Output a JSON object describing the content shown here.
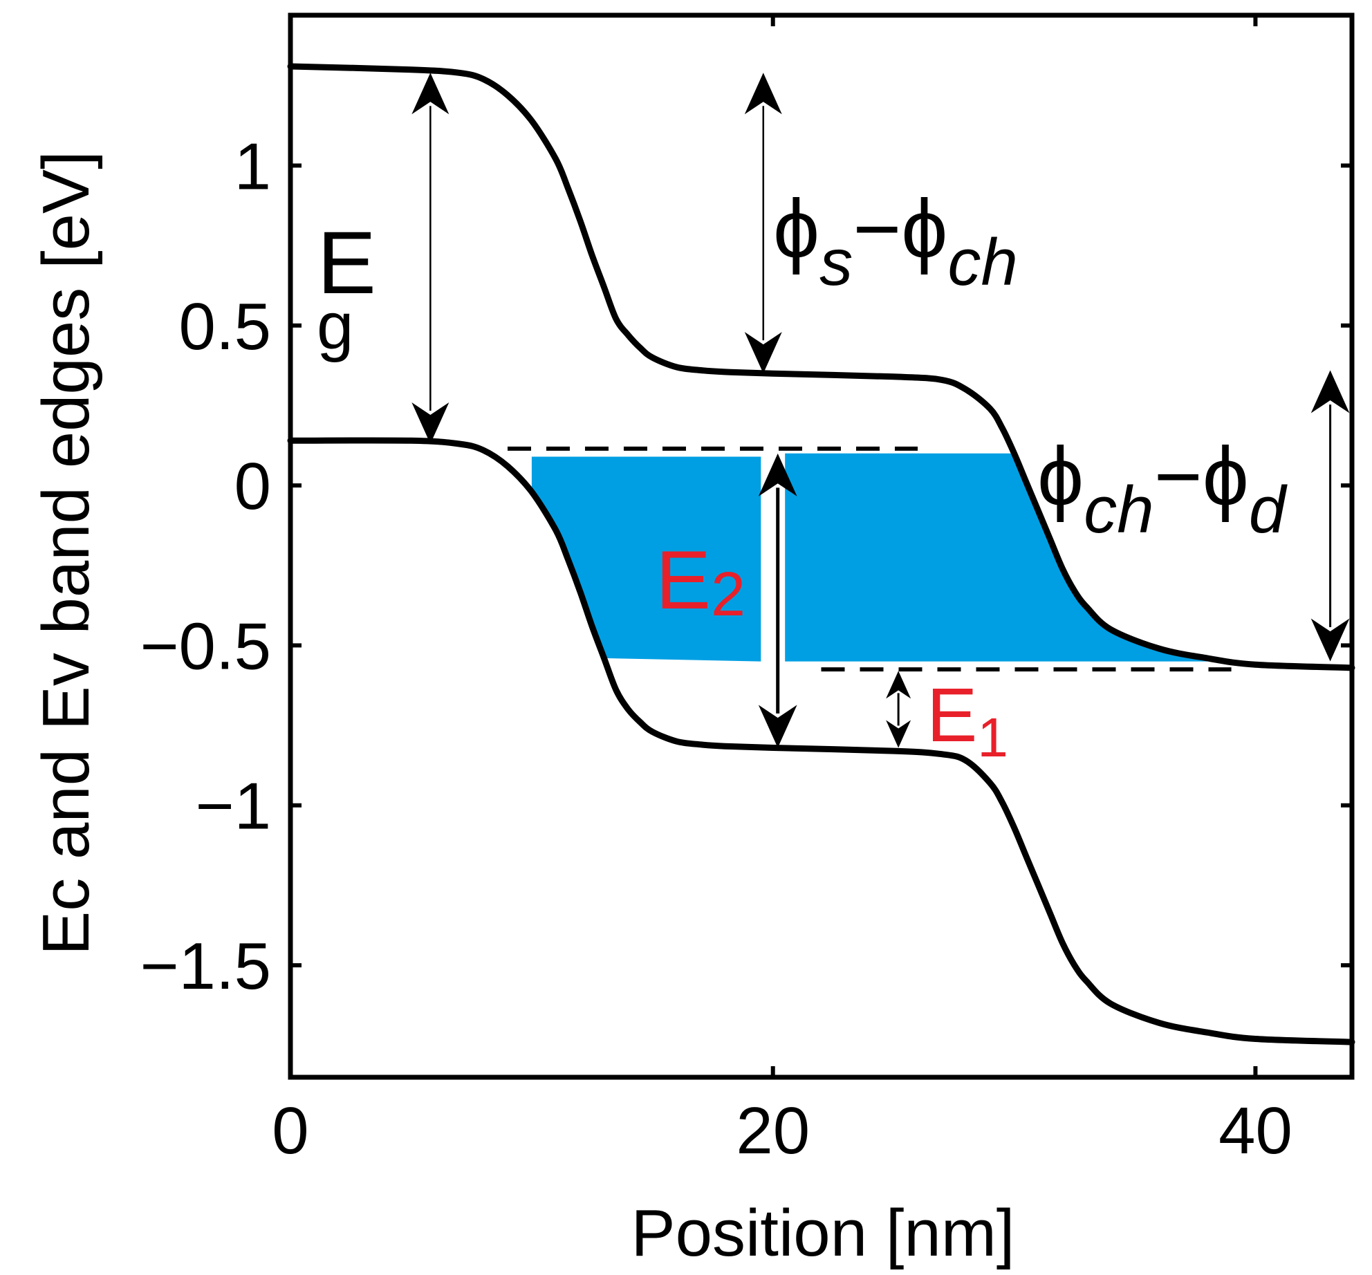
{
  "chart_data": {
    "type": "line",
    "title": "",
    "xlabel": "Position [nm]",
    "ylabel": "Ec and Ev band edges [eV]",
    "xlim": [
      0,
      44
    ],
    "ylim": [
      -1.85,
      1.47
    ],
    "xticks": [
      0,
      20,
      40
    ],
    "xtick_labels": [
      "0",
      "20",
      "40"
    ],
    "yticks": [
      1,
      0.5,
      0,
      -0.5,
      -1,
      -1.5
    ],
    "ytick_labels": [
      "1",
      "0.5",
      "0",
      "−0.5",
      "−1",
      "−1.5"
    ],
    "series": [
      {
        "name": "Ec",
        "x": [
          0,
          5,
          7,
          8,
          9,
          10,
          11,
          11.5,
          12,
          12.5,
          13,
          13.5,
          14,
          14.5,
          15,
          16,
          17,
          18,
          20,
          25,
          27,
          28,
          29,
          29.5,
          30,
          30.5,
          31,
          31.5,
          32,
          32.5,
          33,
          34,
          36,
          38,
          40,
          44
        ],
        "y": [
          1.31,
          1.3,
          1.29,
          1.27,
          1.22,
          1.14,
          1.02,
          0.93,
          0.83,
          0.72,
          0.62,
          0.52,
          0.47,
          0.43,
          0.4,
          0.37,
          0.36,
          0.355,
          0.35,
          0.34,
          0.33,
          0.3,
          0.24,
          0.18,
          0.1,
          0.01,
          -0.08,
          -0.17,
          -0.26,
          -0.33,
          -0.38,
          -0.45,
          -0.51,
          -0.54,
          -0.56,
          -0.57
        ]
      },
      {
        "name": "Ev",
        "x": [
          0,
          5,
          7,
          8,
          9,
          10,
          11,
          11.5,
          12,
          12.5,
          13,
          13.5,
          14,
          14.5,
          15,
          16,
          17,
          18,
          20,
          25,
          27,
          28,
          29,
          29.5,
          30,
          30.5,
          31,
          31.5,
          32,
          32.5,
          33,
          34,
          36,
          38,
          40,
          44
        ],
        "y": [
          0.14,
          0.14,
          0.13,
          0.11,
          0.06,
          -0.02,
          -0.14,
          -0.23,
          -0.33,
          -0.44,
          -0.54,
          -0.64,
          -0.7,
          -0.74,
          -0.77,
          -0.8,
          -0.81,
          -0.815,
          -0.82,
          -0.83,
          -0.84,
          -0.86,
          -0.93,
          -0.99,
          -1.07,
          -1.16,
          -1.25,
          -1.34,
          -1.43,
          -1.5,
          -1.55,
          -1.62,
          -1.68,
          -1.71,
          -1.73,
          -1.74
        ]
      }
    ],
    "reference_lines": [
      {
        "name": "upper-dashed-level",
        "y": 0.115,
        "x_range": [
          9,
          26
        ]
      },
      {
        "name": "lower-dashed-level",
        "y": -0.575,
        "x_range": [
          22,
          39
        ]
      }
    ],
    "shaded_regions": [
      {
        "name": "left-well",
        "x_range": [
          10,
          19.5
        ],
        "y_range": [
          -0.55,
          0.09
        ],
        "color": "#009fe3"
      },
      {
        "name": "right-well",
        "x_range": [
          20.5,
          38
        ],
        "y_range": [
          -0.55,
          0.1
        ],
        "color": "#009fe3"
      }
    ],
    "annotations": [
      {
        "name": "Eg",
        "main": "E",
        "sub": "g",
        "arrow": {
          "x": 5.8,
          "y_from": 1.29,
          "y_to": 0.13
        }
      },
      {
        "name": "phi-s-ch",
        "parts": [
          "ϕ",
          "s",
          "−ϕ",
          "ch"
        ],
        "arrow": {
          "x": 19.6,
          "y_from": 1.29,
          "y_to": 0.35
        }
      },
      {
        "name": "phi-ch-d",
        "parts": [
          "ϕ",
          "ch",
          "−ϕ",
          "d"
        ],
        "arrow": {
          "x": 43.1,
          "y_from": 0.36,
          "y_to": -0.55
        }
      },
      {
        "name": "E2",
        "main": "E",
        "sub": "2",
        "color": "#e8202a",
        "arrow": {
          "x": 20.2,
          "y_from": 0.1,
          "y_to": -0.82
        }
      },
      {
        "name": "E1",
        "main": "E",
        "sub": "1",
        "color": "#e8202a",
        "arrow": {
          "x": 25.2,
          "y_from": -0.58,
          "y_to": -0.82
        }
      }
    ]
  }
}
